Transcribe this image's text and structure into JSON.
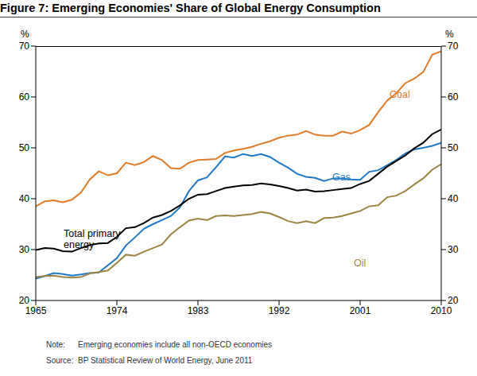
{
  "chart_data": {
    "type": "line",
    "title": "Figure 7: Emerging Economies' Share of Global Energy Consumption",
    "ylabel": "%",
    "y2label": "%",
    "notes": [
      "Note: Emerging economies include all non-OECD economies",
      "Source: BP Statistical Review of World Energy, June 2011"
    ],
    "x": [
      1965,
      1966,
      1967,
      1968,
      1969,
      1970,
      1971,
      1972,
      1973,
      1974,
      1975,
      1976,
      1977,
      1978,
      1979,
      1980,
      1981,
      1982,
      1983,
      1984,
      1985,
      1986,
      1987,
      1988,
      1989,
      1990,
      1991,
      1992,
      1993,
      1994,
      1995,
      1996,
      1997,
      1998,
      1999,
      2000,
      2001,
      2002,
      2003,
      2004,
      2005,
      2006,
      2007,
      2008,
      2009,
      2010
    ],
    "xlim": [
      1965,
      2010
    ],
    "xticks": [
      1965,
      1974,
      1983,
      1992,
      2001,
      2010
    ],
    "ylim": [
      20,
      70
    ],
    "yticks": [
      20,
      30,
      40,
      50,
      60,
      70
    ],
    "y2lim": [
      20,
      70
    ],
    "y2ticks": [
      20,
      30,
      40,
      50,
      60,
      70
    ],
    "grid": false,
    "series": [
      {
        "name": "Coal",
        "color": "#e07b2a",
        "values": [
          38.5,
          39.5,
          39.7,
          39.3,
          39.8,
          41.2,
          43.8,
          45.4,
          44.6,
          45.0,
          47.1,
          46.6,
          47.2,
          48.4,
          47.6,
          46.0,
          45.9,
          47.1,
          47.6,
          47.7,
          47.8,
          49.0,
          49.5,
          49.8,
          50.2,
          50.8,
          51.3,
          52.0,
          52.4,
          52.6,
          53.3,
          52.6,
          52.4,
          52.4,
          53.2,
          52.8,
          53.5,
          54.5,
          57.0,
          59.3,
          60.7,
          62.7,
          63.6,
          64.9,
          68.3,
          69.0
        ]
      },
      {
        "name": "Gas",
        "color": "#1f78c8",
        "values": [
          24.3,
          24.8,
          25.4,
          25.2,
          24.9,
          25.1,
          25.4,
          25.5,
          26.9,
          28.3,
          30.8,
          32.4,
          34.1,
          35.0,
          35.8,
          36.6,
          38.3,
          41.5,
          43.6,
          44.2,
          46.2,
          48.3,
          48.1,
          48.8,
          48.4,
          48.8,
          48.2,
          47.1,
          46.1,
          44.9,
          44.3,
          44.1,
          43.5,
          44.0,
          44.0,
          43.8,
          43.7,
          45.3,
          45.6,
          46.6,
          47.6,
          48.9,
          49.7,
          50.0,
          50.4,
          51.0
        ]
      },
      {
        "name": "Total primary energy",
        "color": "#000000",
        "values": [
          29.9,
          30.3,
          30.2,
          29.7,
          29.6,
          30.3,
          30.9,
          31.2,
          31.3,
          32.5,
          34.2,
          34.4,
          35.2,
          36.3,
          36.8,
          37.6,
          38.7,
          40.0,
          40.8,
          40.9,
          41.5,
          42.1,
          42.4,
          42.6,
          42.7,
          43.0,
          42.8,
          42.5,
          42.1,
          41.6,
          41.8,
          41.4,
          41.5,
          41.7,
          41.9,
          42.1,
          42.9,
          43.5,
          44.9,
          46.3,
          47.4,
          48.5,
          49.9,
          51.0,
          52.7,
          53.6
        ]
      },
      {
        "name": "Oil",
        "color": "#9c8444",
        "values": [
          24.6,
          24.8,
          24.9,
          24.6,
          24.5,
          24.6,
          25.3,
          25.6,
          25.9,
          27.4,
          29.0,
          28.8,
          29.6,
          30.3,
          31.0,
          33.0,
          34.4,
          35.7,
          36.1,
          35.8,
          36.6,
          36.7,
          36.6,
          36.8,
          37.0,
          37.4,
          37.1,
          36.4,
          35.6,
          35.2,
          35.6,
          35.2,
          36.2,
          36.3,
          36.6,
          37.1,
          37.6,
          38.5,
          38.7,
          40.3,
          40.6,
          41.5,
          42.8,
          44.0,
          45.7,
          46.8
        ]
      }
    ]
  }
}
